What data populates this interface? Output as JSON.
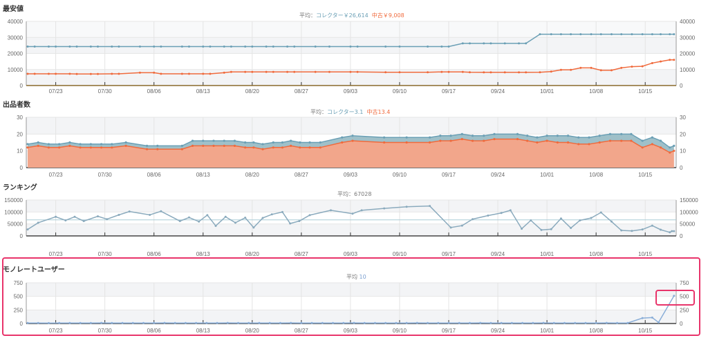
{
  "x_ticks": [
    {
      "day": 4,
      "label": "07/23"
    },
    {
      "day": 11,
      "label": "07/30"
    },
    {
      "day": 18,
      "label": "08/06"
    },
    {
      "day": 25,
      "label": "08/13"
    },
    {
      "day": 32,
      "label": "08/20"
    },
    {
      "day": 39,
      "label": "08/27"
    },
    {
      "day": 46,
      "label": "09/03"
    },
    {
      "day": 53,
      "label": "09/10"
    },
    {
      "day": 60,
      "label": "09/17"
    },
    {
      "day": 67,
      "label": "09/24"
    },
    {
      "day": 74,
      "label": "10/01"
    },
    {
      "day": 81,
      "label": "10/08"
    },
    {
      "day": 88,
      "label": "10/15"
    }
  ],
  "colors": {
    "collector": "#6a9fb5",
    "used": "#f06a3c",
    "collector_fill": "#9fc0c9",
    "used_fill": "#f2a68b",
    "ranking": "#8aaabd",
    "monoreto": "#8aaed8",
    "highlight": "#e8336a"
  },
  "chart_data": [
    {
      "id": "price",
      "type": "line",
      "title": "最安値",
      "avg_prefix": "平均：",
      "avg_collector": "コレクター￥26,614",
      "avg_used": "中古￥9,008",
      "ylim": [
        0,
        40000
      ],
      "yticks": [
        "0",
        "10000",
        "20000",
        "30000",
        "40000"
      ],
      "ytick_values": [
        0,
        10000,
        20000,
        30000,
        40000
      ],
      "x": [
        0,
        1,
        3,
        4,
        6,
        7,
        9,
        10,
        12,
        13,
        16,
        18,
        19,
        22,
        23,
        25,
        26,
        28,
        29,
        31,
        32,
        34,
        35,
        37,
        38,
        41,
        43,
        46,
        47,
        51,
        53,
        57,
        59,
        60,
        62,
        63,
        65,
        66,
        68,
        70,
        71,
        73,
        74.6,
        76,
        77.4,
        78.8,
        80.3,
        81.7,
        83.2,
        84.6,
        86.1,
        87.6,
        89,
        90.2,
        91.5,
        92.1
      ],
      "series": [
        {
          "name": "コレクター",
          "values": [
            24300,
            24300,
            24300,
            24300,
            24300,
            24300,
            24300,
            24300,
            24300,
            24300,
            24300,
            24300,
            24300,
            24300,
            24300,
            24300,
            24300,
            24300,
            24300,
            24300,
            24300,
            24300,
            24300,
            24300,
            24300,
            24300,
            24300,
            24300,
            24300,
            24300,
            24300,
            24300,
            24300,
            24300,
            26300,
            26300,
            26300,
            26300,
            26300,
            26300,
            26300,
            32000,
            32000,
            32000,
            32000,
            32000,
            32000,
            32000,
            32000,
            32000,
            32000,
            32000,
            32000,
            32000,
            32000,
            32000
          ]
        },
        {
          "name": "中古",
          "values": [
            7300,
            7300,
            7300,
            7300,
            7300,
            7200,
            7200,
            7200,
            7300,
            7300,
            8000,
            8000,
            7300,
            7300,
            7300,
            7300,
            7300,
            8000,
            8500,
            8500,
            8500,
            8500,
            8500,
            8500,
            8500,
            8500,
            8500,
            8500,
            8500,
            8300,
            8300,
            8300,
            8500,
            8500,
            8500,
            8300,
            8200,
            8200,
            8200,
            8200,
            8200,
            8300,
            8700,
            9800,
            9800,
            11000,
            11000,
            9500,
            9500,
            11000,
            11800,
            12000,
            14000,
            15000,
            16000,
            16000
          ]
        }
      ]
    },
    {
      "id": "count",
      "type": "area",
      "stacked": true,
      "title": "出品者数",
      "avg_prefix": "平均：",
      "avg_collector": "コレクター3.1",
      "avg_used": "中古13.4",
      "ylim": [
        0,
        30
      ],
      "yticks": [
        "0",
        "10",
        "20",
        "30"
      ],
      "ytick_values": [
        0,
        10,
        20,
        30
      ],
      "x": [
        0,
        1.5,
        3,
        4.5,
        6,
        7.5,
        9,
        10.5,
        12,
        14,
        17,
        18.5,
        22,
        23.5,
        25,
        26.5,
        28,
        29.5,
        31,
        32.2,
        33.5,
        35,
        36.3,
        37.5,
        38.8,
        40.2,
        41.7,
        44.8,
        46.3,
        50.8,
        54,
        57.3,
        58.8,
        60.3,
        61.9,
        63.4,
        65,
        66.5,
        69.8,
        71.2,
        72.6,
        74,
        75.5,
        77,
        78.5,
        80,
        81.5,
        83,
        84.6,
        86,
        87.6,
        89,
        90.2,
        91.5,
        92.1
      ],
      "series": [
        {
          "name": "中古",
          "values": [
            12,
            13,
            12,
            12,
            13,
            12,
            12,
            12,
            12,
            13,
            11,
            11,
            11,
            13,
            13,
            13,
            13,
            13,
            12,
            12,
            11,
            12,
            12,
            13,
            12,
            12,
            12,
            15,
            16,
            15,
            15,
            15,
            16,
            16,
            17,
            16,
            16,
            17,
            17,
            16,
            15,
            16,
            15,
            15,
            14,
            14,
            15,
            16,
            16,
            16,
            12,
            14,
            12,
            9,
            10
          ]
        },
        {
          "name": "コレクター",
          "values": [
            2,
            2,
            2,
            2,
            2,
            2,
            2,
            2,
            2,
            2,
            2,
            2,
            2,
            3,
            3,
            3,
            3,
            3,
            3,
            3,
            3,
            3,
            3,
            3,
            3,
            3,
            3,
            3,
            3,
            3,
            3,
            3,
            3,
            3,
            3,
            3,
            3,
            3,
            3,
            3,
            3,
            3,
            4,
            4,
            4,
            4,
            4,
            4,
            4,
            4,
            4,
            4,
            4,
            3,
            3
          ]
        }
      ]
    },
    {
      "id": "ranking",
      "type": "line",
      "title": "ランキング",
      "avg_prefix": "平均：",
      "avg_value": "67028",
      "average": 67028,
      "ylim": [
        0,
        150000
      ],
      "yticks": [
        "0",
        "50000",
        "100000",
        "150000"
      ],
      "ytick_values": [
        0,
        50000,
        100000,
        150000
      ],
      "x": [
        0,
        1.5,
        4,
        5.4,
        6.7,
        8,
        10,
        11.3,
        13,
        14.5,
        17.4,
        19,
        21.7,
        23,
        24.4,
        25.6,
        26.8,
        28.2,
        29.6,
        31,
        32.2,
        33.5,
        34.8,
        36.3,
        37.4,
        38.7,
        40.2,
        43.2,
        46.3,
        47.6,
        50.8,
        54,
        57.3,
        60.3,
        61.9,
        63.4,
        65.6,
        67.5,
        68.8,
        70.4,
        71.7,
        73.2,
        74.6,
        76,
        77.4,
        78.7,
        80.3,
        81.7,
        83.2,
        84.6,
        86.1,
        87.6,
        89,
        90.2,
        91.5,
        91.8,
        92.1
      ],
      "series": [
        {
          "name": "ランキング",
          "values": [
            27000,
            55000,
            80000,
            65000,
            80000,
            62000,
            82000,
            70000,
            88000,
            102000,
            88000,
            103000,
            62000,
            77000,
            60000,
            87000,
            42000,
            80000,
            55000,
            76000,
            35000,
            75000,
            90000,
            100000,
            52000,
            62000,
            87000,
            107000,
            93000,
            107000,
            115000,
            122000,
            125000,
            35000,
            43000,
            70000,
            85000,
            96000,
            107000,
            30000,
            65000,
            25000,
            28000,
            73000,
            33000,
            65000,
            75000,
            98000,
            60000,
            23000,
            21000,
            27000,
            43000,
            26000,
            15000,
            20000,
            20000
          ]
        }
      ]
    },
    {
      "id": "monoreto",
      "type": "line",
      "title": "モノレートユーザー",
      "avg_prefix": "平均",
      "avg_value": "10",
      "ylim": [
        0,
        750
      ],
      "yticks": [
        "0",
        "250",
        "500",
        "750"
      ],
      "ytick_values": [
        0,
        250,
        500,
        750
      ],
      "x": [
        0,
        1.5,
        3,
        4.5,
        6,
        7.5,
        9,
        10.5,
        12,
        13.5,
        15,
        16.5,
        18,
        19.5,
        21,
        22.5,
        24,
        25.5,
        27,
        28.5,
        30,
        31.5,
        33,
        34.5,
        36,
        37.5,
        39,
        40.5,
        42,
        43.5,
        45,
        46.5,
        48,
        49.5,
        51,
        52.5,
        54,
        55.5,
        57,
        58.5,
        60,
        61.5,
        63,
        64.5,
        66,
        67.5,
        69,
        70.5,
        72,
        73.5,
        75,
        76.5,
        78,
        79.5,
        81,
        82.5,
        84,
        85.5,
        87.6,
        89,
        89.9,
        92.1
      ],
      "series": [
        {
          "name": "モノレートユーザー",
          "values": [
            10,
            10,
            8,
            10,
            9,
            10,
            10,
            11,
            10,
            10,
            9,
            10,
            10,
            11,
            10,
            10,
            9,
            10,
            10,
            11,
            10,
            10,
            9,
            10,
            10,
            11,
            10,
            10,
            9,
            10,
            10,
            11,
            10,
            10,
            9,
            10,
            10,
            11,
            10,
            10,
            9,
            10,
            10,
            11,
            10,
            10,
            9,
            10,
            10,
            11,
            10,
            10,
            9,
            10,
            10,
            11,
            10,
            10,
            100,
            110,
            20,
            510
          ]
        }
      ]
    }
  ]
}
